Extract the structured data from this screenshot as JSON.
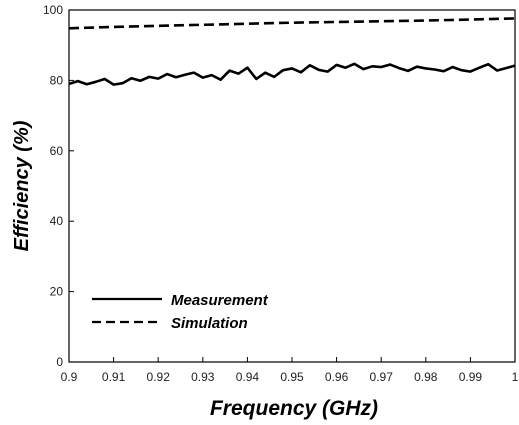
{
  "chart_data": {
    "type": "line",
    "title": "",
    "xlabel": "Frequency (GHz)",
    "ylabel": "Efficiency (%)",
    "xlim": [
      0.9,
      1.0
    ],
    "ylim": [
      0,
      100
    ],
    "x_ticks": [
      0.9,
      0.91,
      0.92,
      0.93,
      0.94,
      0.95,
      0.96,
      0.97,
      0.98,
      0.99,
      1.0
    ],
    "x_tick_labels": [
      "0.9",
      "0.91",
      "0.92",
      "0.93",
      "0.94",
      "0.95",
      "0.96",
      "0.97",
      "0.98",
      "0.99",
      "1"
    ],
    "y_ticks": [
      0,
      20,
      40,
      60,
      80,
      100
    ],
    "y_tick_labels": [
      "0",
      "20",
      "40",
      "60",
      "80",
      "100"
    ],
    "grid": false,
    "legend_position": "bottom-left",
    "series": [
      {
        "name": "Measurement",
        "style": "solid",
        "color": "#000000",
        "x": [
          0.9,
          0.902,
          0.904,
          0.906,
          0.908,
          0.91,
          0.912,
          0.914,
          0.916,
          0.918,
          0.92,
          0.922,
          0.924,
          0.926,
          0.928,
          0.93,
          0.932,
          0.934,
          0.936,
          0.938,
          0.94,
          0.942,
          0.944,
          0.946,
          0.948,
          0.95,
          0.952,
          0.954,
          0.956,
          0.958,
          0.96,
          0.962,
          0.964,
          0.966,
          0.968,
          0.97,
          0.972,
          0.974,
          0.976,
          0.978,
          0.98,
          0.982,
          0.984,
          0.986,
          0.988,
          0.99,
          0.992,
          0.994,
          0.996,
          0.998,
          1.0
        ],
        "y": [
          79.0,
          79.8,
          78.9,
          79.6,
          80.4,
          78.8,
          79.2,
          80.6,
          79.9,
          81.0,
          80.5,
          81.8,
          80.9,
          81.6,
          82.2,
          80.8,
          81.5,
          80.2,
          82.8,
          81.9,
          83.6,
          80.4,
          82.2,
          81.0,
          82.9,
          83.4,
          82.3,
          84.3,
          83.0,
          82.5,
          84.4,
          83.6,
          84.7,
          83.2,
          84.0,
          83.8,
          84.5,
          83.5,
          82.7,
          83.9,
          83.4,
          83.1,
          82.6,
          83.8,
          82.9,
          82.5,
          83.6,
          84.6,
          82.8,
          83.5,
          84.2
        ]
      },
      {
        "name": "Simulation",
        "style": "dashed",
        "color": "#000000",
        "x": [
          0.9,
          0.91,
          0.92,
          0.93,
          0.94,
          0.95,
          0.96,
          0.97,
          0.98,
          0.99,
          1.0
        ],
        "y": [
          94.8,
          95.2,
          95.5,
          95.8,
          96.1,
          96.4,
          96.6,
          96.8,
          97.0,
          97.3,
          97.6
        ]
      }
    ]
  }
}
